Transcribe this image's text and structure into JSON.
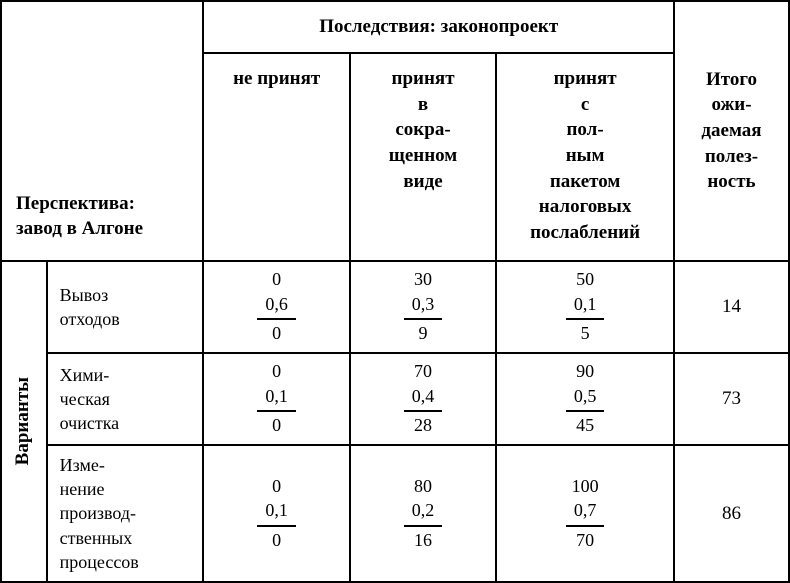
{
  "table": {
    "perspective_label": "Перспектива: завод в Алгоне",
    "consequences_header": "Последствия: законопроект",
    "total_header": "Итого ожи- даемая полез- ность",
    "variants_label": "Варианты",
    "col_headers": [
      "не принят",
      "принят в сокра- щенном виде",
      "принят с пол- ным пакетом налоговых послаблений"
    ],
    "rows": [
      {
        "label": "Вывоз отходов",
        "cells": [
          {
            "top": "0",
            "mid": "0,6",
            "bot": "0"
          },
          {
            "top": "30",
            "mid": "0,3",
            "bot": "9"
          },
          {
            "top": "50",
            "mid": "0,1",
            "bot": "5"
          }
        ],
        "total": "14"
      },
      {
        "label": "Хими- ческая очистка",
        "cells": [
          {
            "top": "0",
            "mid": "0,1",
            "bot": "0"
          },
          {
            "top": "70",
            "mid": "0,4",
            "bot": "28"
          },
          {
            "top": "90",
            "mid": "0,5",
            "bot": "45"
          }
        ],
        "total": "73"
      },
      {
        "label": "Изме- нение производ- ственных процессов",
        "cells": [
          {
            "top": "0",
            "mid": "0,1",
            "bot": "0"
          },
          {
            "top": "80",
            "mid": "0,2",
            "bot": "16"
          },
          {
            "top": "100",
            "mid": "0,7",
            "bot": "70"
          }
        ],
        "total": "86"
      }
    ],
    "colors": {
      "border": "#000000",
      "background": "#ffffff",
      "text": "#000000"
    },
    "fonts": {
      "body_size_pt": 14,
      "header_size_pt": 14,
      "weight_header": "bold"
    }
  }
}
